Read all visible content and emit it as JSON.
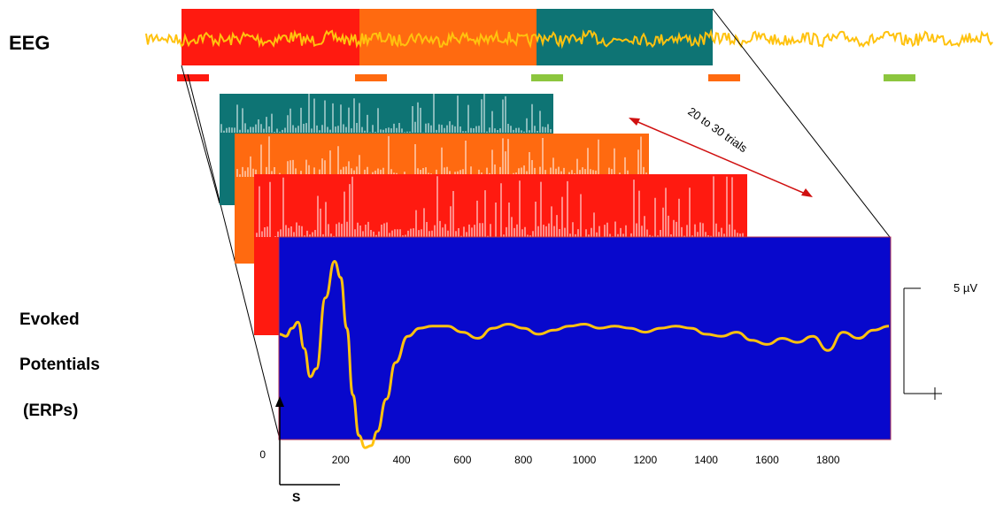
{
  "labels": {
    "eeg": "EEG",
    "evoked_line1": "Evoked",
    "evoked_line2": "Potentials",
    "evoked_line3": "(ERPs)",
    "trials": "20 to 30 trials",
    "scale": "5 µV",
    "stimulus": "S",
    "origin": "0"
  },
  "colors": {
    "red": "#ff1a10",
    "orange": "#ff6a10",
    "teal": "#0e7474",
    "blue": "#0808cc",
    "eeg_trace": "#ffc20e",
    "green": "#8cc63e",
    "arrow": "#d01010"
  },
  "eeg_segments": [
    "red",
    "orange",
    "teal"
  ],
  "stimulus_markers": [
    "red",
    "orange",
    "green",
    "orange",
    "green"
  ],
  "chart_data": {
    "type": "line",
    "title": "",
    "xlabel": "",
    "ylabel": "",
    "x_ticks": [
      "200",
      "400",
      "600",
      "800",
      "1000",
      "1200",
      "1400",
      "1600",
      "1800"
    ],
    "xlim": [
      0,
      2000
    ],
    "ylim": [
      -5,
      5
    ],
    "scale_bar": "5 µV",
    "series": [
      {
        "x": [
          0,
          20,
          40,
          60,
          80,
          100,
          120,
          150,
          180,
          200,
          220,
          240,
          260,
          280,
          300,
          320,
          350,
          380,
          420,
          460,
          500,
          550,
          600,
          650,
          700,
          750,
          800,
          850,
          900,
          950,
          1000,
          1050,
          1100,
          1150,
          1200,
          1250,
          1300,
          1350,
          1400,
          1450,
          1500,
          1550,
          1600,
          1650,
          1700,
          1750,
          1800,
          1850,
          1900,
          1950,
          2000
        ],
        "values": [
          0.2,
          0.1,
          0.5,
          0.8,
          -0.5,
          -1.9,
          -1.5,
          2.0,
          3.8,
          3.0,
          0.5,
          -2.8,
          -4.8,
          -5.4,
          -5.3,
          -4.6,
          -3.0,
          -1.2,
          0.1,
          0.5,
          0.6,
          0.6,
          0.3,
          0.0,
          0.5,
          0.7,
          0.5,
          0.2,
          0.4,
          0.6,
          0.7,
          0.5,
          0.6,
          0.5,
          0.3,
          0.5,
          0.6,
          0.5,
          0.2,
          0.1,
          0.3,
          -0.1,
          -0.3,
          0.0,
          -0.2,
          0.1,
          -0.6,
          0.3,
          0.0,
          0.4,
          0.6
        ]
      }
    ]
  }
}
